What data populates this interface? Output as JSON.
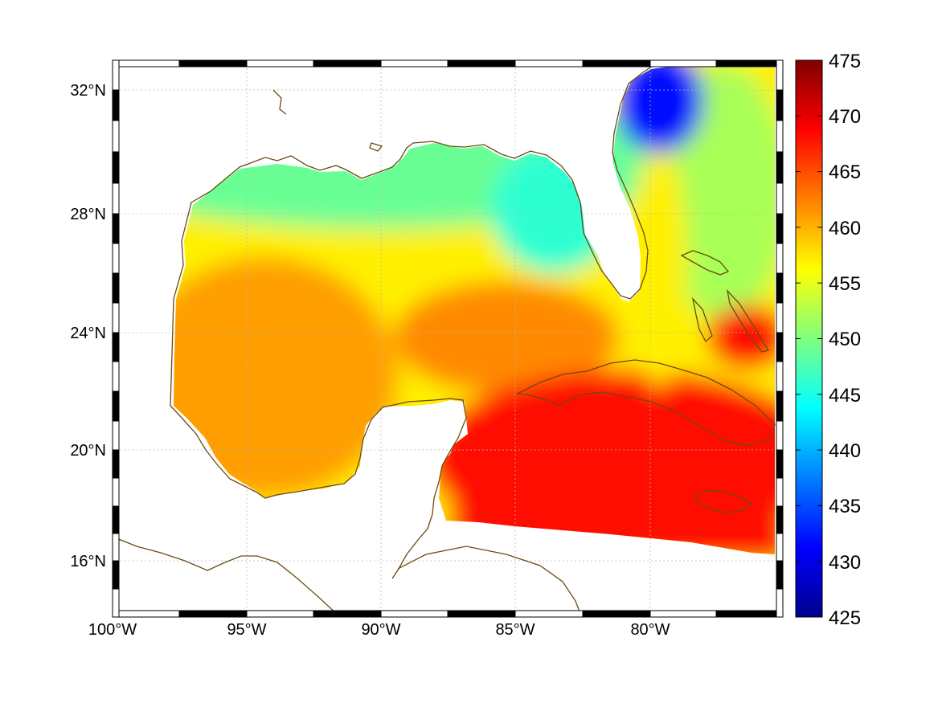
{
  "map": {
    "projection": "equirectangular",
    "extent": {
      "lon": [
        -100,
        -75.1
      ],
      "lat": [
        14.3,
        32.9
      ]
    },
    "grid": "dotted",
    "coastline_color": "#6b4a12",
    "frame_style": "black-white alternating border",
    "lon_tick_labels": [
      "100°W",
      "95°W",
      "90°W",
      "85°W",
      "80°W"
    ],
    "lat_tick_labels": [
      "32°N",
      "28°N",
      "24°N",
      "20°N",
      "16°N"
    ]
  },
  "colorbar": {
    "colormap": "jet",
    "min": 425,
    "max": 475,
    "tick_labels": [
      "475",
      "470",
      "465",
      "460",
      "455",
      "450",
      "445",
      "440",
      "435",
      "430",
      "425"
    ]
  },
  "field_regions": [
    {
      "name": "western-gulf",
      "value": 461
    },
    {
      "name": "central-gulf",
      "value": 457
    },
    {
      "name": "northern-gulf-shelf",
      "value": 449
    },
    {
      "name": "west-florida-shelf",
      "value": 446
    },
    {
      "name": "loop-current",
      "value": 462
    },
    {
      "name": "caribbean",
      "value": 468
    },
    {
      "name": "atlantic-off-georgia",
      "value": 432
    },
    {
      "name": "florida-current",
      "value": 457
    },
    {
      "name": "bahamas-sargasso",
      "value": 452
    }
  ]
}
